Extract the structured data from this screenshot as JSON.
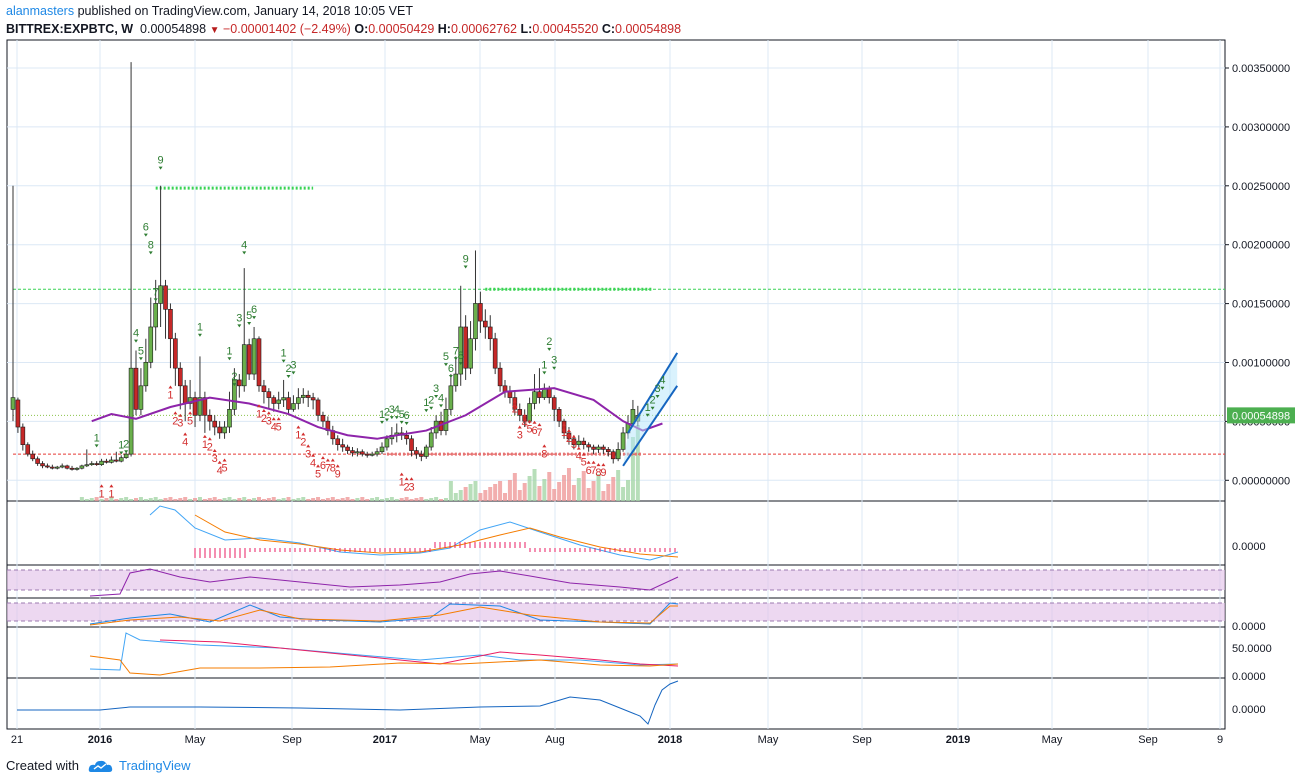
{
  "header": {
    "author": "alanmasters",
    "published_text": " published on TradingView.com, January 14, 2018 10:05 VET",
    "symbol": "BITTREX:EXPBTC, W",
    "last": "0.00054898",
    "change": "−0.00001402 (−2.49%)",
    "o_label": "O:",
    "o_value": "0.00050429",
    "h_label": "H:",
    "h_value": "0.00062762",
    "l_label": "L:",
    "l_value": "0.00045520",
    "c_label": "C:",
    "c_value": "0.00054898"
  },
  "footer": {
    "created_with": "Created with",
    "brand": "TradingView"
  },
  "colors": {
    "up": "#4caf50",
    "down": "#c62828",
    "ma": "#8e24aa",
    "channel": "#1565c0",
    "grid": "#dce8f5",
    "axis": "#131722",
    "td_up": "#2e7d32",
    "td_down": "#d32f2f",
    "price_tag": "#4caf50"
  },
  "chart_data": {
    "type": "candlestick",
    "price_axis": {
      "ticks": [
        "0.00350000",
        "0.00300000",
        "0.00250000",
        "0.00200000",
        "0.00150000",
        "0.00100000",
        "0.00050000",
        "0.00000000"
      ],
      "range": [
        0.0,
        0.0037
      ],
      "last_price_tag": "0.00054898"
    },
    "time_axis": {
      "labels": [
        "21",
        "2016",
        "May",
        "Sep",
        "2017",
        "May",
        "Aug",
        "2018",
        "May",
        "Sep",
        "2019",
        "May",
        "Sep",
        "9"
      ],
      "bold": [
        "2016",
        "2017",
        "2018",
        "2019"
      ]
    },
    "candles": [
      [
        0.0006,
        0.0007,
        0.0025,
        0.0005
      ],
      [
        0.00068,
        0.00045,
        0.0007,
        0.0004
      ],
      [
        0.00045,
        0.0003,
        0.00048,
        0.00025
      ],
      [
        0.0003,
        0.00022,
        0.00032,
        0.0002
      ],
      [
        0.00022,
        0.00018,
        0.00025,
        0.00016
      ],
      [
        0.00018,
        0.00014,
        0.0002,
        0.00012
      ],
      [
        0.00014,
        0.00012,
        0.00016,
        0.0001
      ],
      [
        0.00012,
        0.00011,
        0.00014,
        0.0001
      ],
      [
        0.00011,
        0.0001,
        0.00013,
        9e-05
      ],
      [
        0.0001,
        0.00011,
        0.00012,
        9e-05
      ],
      [
        0.00011,
        0.00012,
        0.00014,
        0.0001
      ],
      [
        0.00012,
        0.0001,
        0.00013,
        9e-05
      ],
      [
        0.0001,
        9e-05,
        0.00012,
        8e-05
      ],
      [
        9e-05,
        0.0001,
        0.00011,
        8e-05
      ],
      [
        0.0001,
        0.00012,
        0.00013,
        9e-05
      ],
      [
        0.00012,
        0.00013,
        0.00026,
        0.00011
      ],
      [
        0.00013,
        0.00014,
        0.00016,
        0.00012
      ],
      [
        0.00014,
        0.00013,
        0.00016,
        0.00012
      ],
      [
        0.00013,
        0.00016,
        0.00018,
        0.00012
      ],
      [
        0.00016,
        0.00015,
        0.00018,
        0.00014
      ],
      [
        0.00015,
        0.00017,
        0.0002,
        0.00014
      ],
      [
        0.00017,
        0.00016,
        0.00024,
        0.00015
      ],
      [
        0.00016,
        0.00019,
        0.00021,
        0.00015
      ],
      [
        0.00019,
        0.00022,
        0.00024,
        0.00018
      ],
      [
        0.00022,
        0.00095,
        0.00355,
        0.0002
      ],
      [
        0.00095,
        0.0006,
        0.0011,
        0.00055
      ],
      [
        0.0006,
        0.0008,
        0.00095,
        0.00055
      ],
      [
        0.0008,
        0.001,
        0.0012,
        0.00075
      ],
      [
        0.001,
        0.0013,
        0.00155,
        0.00095
      ],
      [
        0.0013,
        0.0015,
        0.0017,
        0.0011
      ],
      [
        0.0015,
        0.00165,
        0.0025,
        0.0013
      ],
      [
        0.00165,
        0.00145,
        0.0017,
        0.0012
      ],
      [
        0.00145,
        0.0012,
        0.0015,
        0.00095
      ],
      [
        0.0012,
        0.00095,
        0.00125,
        0.0008
      ],
      [
        0.00095,
        0.0008,
        0.001,
        0.0006
      ],
      [
        0.0008,
        0.00065,
        0.00085,
        0.0005
      ],
      [
        0.00065,
        0.0007,
        0.00085,
        0.0006
      ],
      [
        0.0007,
        0.00055,
        0.00075,
        0.00045
      ],
      [
        0.00055,
        0.0007,
        0.00105,
        0.0005
      ],
      [
        0.0007,
        0.00055,
        0.00075,
        0.0004
      ],
      [
        0.00055,
        0.0005,
        0.0006,
        0.00042
      ],
      [
        0.0005,
        0.00045,
        0.00055,
        0.00038
      ],
      [
        0.00045,
        0.0004,
        0.0005,
        0.00035
      ],
      [
        0.0004,
        0.00045,
        0.0005,
        0.00035
      ],
      [
        0.00045,
        0.0006,
        0.00075,
        0.0004
      ],
      [
        0.0006,
        0.00085,
        0.00095,
        0.00055
      ],
      [
        0.00085,
        0.0008,
        0.0009,
        0.0007
      ],
      [
        0.0008,
        0.00115,
        0.0018,
        0.00075
      ],
      [
        0.00115,
        0.0009,
        0.0012,
        0.00085
      ],
      [
        0.0009,
        0.0012,
        0.0013,
        0.00085
      ],
      [
        0.0012,
        0.0008,
        0.00122,
        0.00075
      ],
      [
        0.0008,
        0.00075,
        0.00085,
        0.00065
      ],
      [
        0.00075,
        0.0007,
        0.00078,
        0.0006
      ],
      [
        0.0007,
        0.00065,
        0.00072,
        0.00058
      ],
      [
        0.00065,
        0.00068,
        0.00075,
        0.0006
      ],
      [
        0.00068,
        0.0007,
        0.00085,
        0.00062
      ],
      [
        0.0007,
        0.0006,
        0.00075,
        0.00055
      ],
      [
        0.0006,
        0.00065,
        0.00072,
        0.00058
      ],
      [
        0.00065,
        0.0007,
        0.00078,
        0.0006
      ],
      [
        0.0007,
        0.00072,
        0.00078,
        0.00065
      ],
      [
        0.00072,
        0.0007,
        0.00076,
        0.00062
      ],
      [
        0.0007,
        0.00068,
        0.00074,
        0.0006
      ],
      [
        0.00068,
        0.00055,
        0.0007,
        0.0005
      ],
      [
        0.00055,
        0.0005,
        0.00058,
        0.00045
      ],
      [
        0.0005,
        0.00042,
        0.00054,
        0.00038
      ],
      [
        0.00042,
        0.00035,
        0.00046,
        0.0003
      ],
      [
        0.00035,
        0.0003,
        0.00038,
        0.00025
      ],
      [
        0.0003,
        0.00028,
        0.00035,
        0.00024
      ],
      [
        0.00028,
        0.00025,
        0.0003,
        0.00022
      ],
      [
        0.00025,
        0.00023,
        0.00028,
        0.0002
      ],
      [
        0.00023,
        0.00024,
        0.00027,
        0.0002
      ],
      [
        0.00024,
        0.00022,
        0.00026,
        0.0002
      ],
      [
        0.00022,
        0.00021,
        0.00024,
        0.00019
      ],
      [
        0.00021,
        0.00022,
        0.00024,
        0.0002
      ],
      [
        0.00022,
        0.00024,
        0.00027,
        0.0002
      ],
      [
        0.00024,
        0.00028,
        0.00032,
        0.00022
      ],
      [
        0.00028,
        0.00035,
        0.00038,
        0.00025
      ],
      [
        0.00035,
        0.00038,
        0.00045,
        0.0003
      ],
      [
        0.00038,
        0.0004,
        0.00048,
        0.00032
      ],
      [
        0.0004,
        0.00038,
        0.00045,
        0.00034
      ],
      [
        0.00038,
        0.00035,
        0.00042,
        0.0003
      ],
      [
        0.00035,
        0.00025,
        0.00038,
        0.0002
      ],
      [
        0.00025,
        0.00022,
        0.00028,
        0.00018
      ],
      [
        0.00022,
        0.0002,
        0.00025,
        0.00016
      ],
      [
        0.0002,
        0.00028,
        0.0003,
        0.00018
      ],
      [
        0.00028,
        0.0004,
        0.00045,
        0.00025
      ],
      [
        0.0004,
        0.0005,
        0.00055,
        0.00035
      ],
      [
        0.0005,
        0.00042,
        0.00058,
        0.00038
      ],
      [
        0.00042,
        0.0006,
        0.0007,
        0.00038
      ],
      [
        0.0006,
        0.0008,
        0.0009,
        0.00055
      ],
      [
        0.0008,
        0.0009,
        0.00105,
        0.00075
      ],
      [
        0.0009,
        0.0013,
        0.00165,
        0.0008
      ],
      [
        0.0013,
        0.00095,
        0.0014,
        0.00085
      ],
      [
        0.00095,
        0.0012,
        0.00135,
        0.0009
      ],
      [
        0.0012,
        0.0015,
        0.00195,
        0.0011
      ],
      [
        0.0015,
        0.00135,
        0.0016,
        0.00125
      ],
      [
        0.00135,
        0.0013,
        0.00145,
        0.0012
      ],
      [
        0.0013,
        0.0012,
        0.0014,
        0.0011
      ],
      [
        0.0012,
        0.00095,
        0.00125,
        0.0009
      ],
      [
        0.00095,
        0.0008,
        0.001,
        0.00075
      ],
      [
        0.0008,
        0.00075,
        0.00085,
        0.0007
      ],
      [
        0.00075,
        0.0007,
        0.0008,
        0.00065
      ],
      [
        0.0007,
        0.0006,
        0.00075,
        0.00055
      ],
      [
        0.0006,
        0.00055,
        0.00065,
        0.0005
      ],
      [
        0.00055,
        0.0005,
        0.0006,
        0.00045
      ],
      [
        0.0005,
        0.00065,
        0.0007,
        0.00048
      ],
      [
        0.00065,
        0.00075,
        0.0009,
        0.0006
      ],
      [
        0.00075,
        0.0007,
        0.00095,
        0.00065
      ],
      [
        0.0007,
        0.00078,
        0.00082,
        0.00068
      ],
      [
        0.00078,
        0.0007,
        0.0008,
        0.00065
      ],
      [
        0.0007,
        0.0006,
        0.00072,
        0.0005
      ],
      [
        0.0006,
        0.0005,
        0.00062,
        0.00045
      ],
      [
        0.0005,
        0.0004,
        0.00052,
        0.00035
      ],
      [
        0.0004,
        0.00035,
        0.00045,
        0.0003
      ],
      [
        0.00035,
        0.0003,
        0.00038,
        0.00026
      ],
      [
        0.0003,
        0.00033,
        0.00038,
        0.00028
      ],
      [
        0.00033,
        0.0003,
        0.00036,
        0.00026
      ],
      [
        0.0003,
        0.00028,
        0.00032,
        0.00024
      ],
      [
        0.00028,
        0.00026,
        0.0003,
        0.00022
      ],
      [
        0.00026,
        0.00028,
        0.0003,
        0.00023
      ],
      [
        0.00028,
        0.00026,
        0.0003,
        0.00022
      ],
      [
        0.00026,
        0.00024,
        0.00028,
        0.0002
      ],
      [
        0.00024,
        0.00018,
        0.00026,
        0.00014
      ],
      [
        0.00018,
        0.00026,
        0.00032,
        0.00016
      ],
      [
        0.00026,
        0.0004,
        0.00045,
        0.00024
      ],
      [
        0.0004,
        0.00048,
        0.00055,
        0.00035
      ],
      [
        0.00048,
        0.0006,
        0.00068,
        0.00045
      ],
      [
        0.0005,
        0.000549,
        0.00063,
        0.000455
      ]
    ],
    "moving_average": [
      [
        16,
        0.0005
      ],
      [
        20,
        0.00056
      ],
      [
        25,
        0.00052
      ],
      [
        32,
        0.00062
      ],
      [
        40,
        0.0007
      ],
      [
        48,
        0.00065
      ],
      [
        56,
        0.00056
      ],
      [
        62,
        0.00045
      ],
      [
        68,
        0.00038
      ],
      [
        74,
        0.00035
      ],
      [
        78,
        0.00038
      ],
      [
        84,
        0.00042
      ],
      [
        92,
        0.00055
      ],
      [
        100,
        0.00075
      ],
      [
        110,
        0.00078
      ],
      [
        118,
        0.00068
      ],
      [
        124,
        0.0005
      ],
      [
        128,
        0.00042
      ],
      [
        132,
        0.00048
      ]
    ],
    "horizontal_lines": [
      {
        "value": 0.00248,
        "from": 29,
        "to": 61,
        "style": "dotted-bold",
        "color": "#39d353"
      },
      {
        "value": 0.00162,
        "from": 0,
        "to": 220,
        "style": "dashed",
        "color": "#39d353"
      },
      {
        "value": 0.00162,
        "from": 96,
        "to": 130,
        "style": "dotted-bold",
        "color": "#39d353"
      },
      {
        "value": 0.000549,
        "from": 0,
        "to": 220,
        "style": "dotted",
        "color": "#8bc34a"
      },
      {
        "value": 0.00022,
        "from": 0,
        "to": 220,
        "style": "dashed",
        "color": "#e53935"
      },
      {
        "value": 0.00022,
        "from": 76,
        "to": 128,
        "style": "dotted-bold",
        "color": "#e57373"
      }
    ],
    "channel": {
      "lower": [
        [
          124,
          0.00012
        ],
        [
          135,
          0.0008
        ]
      ],
      "upper": [
        [
          125,
          0.0004
        ],
        [
          135,
          0.00108
        ]
      ]
    },
    "td_counts_up": [
      [
        17,
        "1",
        0.00026
      ],
      [
        22,
        "1",
        0.0002
      ],
      [
        23,
        "2",
        0.00021
      ],
      [
        25,
        "4",
        0.00115
      ],
      [
        26,
        "5",
        0.001
      ],
      [
        27,
        "6",
        0.00205
      ],
      [
        28,
        "8",
        0.0019
      ],
      [
        29,
        "7",
        0.0015
      ],
      [
        30,
        "9",
        0.00262
      ],
      [
        38,
        "1",
        0.0012
      ],
      [
        44,
        "1",
        0.001
      ],
      [
        45,
        "2",
        0.00078
      ],
      [
        46,
        "3",
        0.00128
      ],
      [
        47,
        "4",
        0.0019
      ],
      [
        48,
        "5",
        0.0013
      ],
      [
        49,
        "6",
        0.00135
      ],
      [
        55,
        "1",
        0.00098
      ],
      [
        56,
        "2",
        0.00085
      ],
      [
        57,
        "3",
        0.00088
      ],
      [
        75,
        "1",
        0.00046
      ],
      [
        76,
        "2",
        0.00048
      ],
      [
        77,
        "3",
        0.0005
      ],
      [
        78,
        "4",
        0.0005
      ],
      [
        79,
        "5",
        0.00046
      ],
      [
        80,
        "6",
        0.00045
      ],
      [
        84,
        "1",
        0.00056
      ],
      [
        85,
        "2",
        0.00058
      ],
      [
        86,
        "3",
        0.00068
      ],
      [
        87,
        "4",
        0.0006
      ],
      [
        88,
        "5",
        0.00095
      ],
      [
        89,
        "6",
        0.00085
      ],
      [
        90,
        "7",
        0.001
      ],
      [
        91,
        "8",
        0.00096
      ],
      [
        92,
        "9",
        0.00178
      ],
      [
        108,
        "1",
        0.00088
      ],
      [
        109,
        "2",
        0.00108
      ],
      [
        110,
        "3",
        0.00092
      ],
      [
        129,
        "1",
        0.00052
      ],
      [
        130,
        "2",
        0.00058
      ],
      [
        131,
        "3",
        0.00068
      ],
      [
        132,
        "4",
        0.00075
      ]
    ],
    "td_counts_down": [
      [
        18,
        "1",
        -2e-05
      ],
      [
        20,
        "1",
        -2e-05
      ],
      [
        32,
        "1",
        0.00082
      ],
      [
        33,
        "2",
        0.0006
      ],
      [
        34,
        "3",
        0.00058
      ],
      [
        35,
        "4",
        0.00042
      ],
      [
        36,
        "5",
        0.0006
      ],
      [
        39,
        "1",
        0.0004
      ],
      [
        40,
        "2",
        0.00038
      ],
      [
        41,
        "3",
        0.00028
      ],
      [
        42,
        "4",
        0.00018
      ],
      [
        43,
        "5",
        0.0002
      ],
      [
        50,
        "1",
        0.00066
      ],
      [
        51,
        "2",
        0.00062
      ],
      [
        52,
        "3",
        0.0006
      ],
      [
        53,
        "4",
        0.00055
      ],
      [
        54,
        "5",
        0.00055
      ],
      [
        58,
        "1",
        0.00048
      ],
      [
        59,
        "2",
        0.00042
      ],
      [
        60,
        "3",
        0.00032
      ],
      [
        61,
        "4",
        0.00024
      ],
      [
        62,
        "5",
        0.00015
      ],
      [
        63,
        "6",
        0.00022
      ],
      [
        64,
        "7",
        0.0002
      ],
      [
        65,
        "8",
        0.0002
      ],
      [
        66,
        "9",
        0.00015
      ],
      [
        79,
        "1",
        8e-05
      ],
      [
        80,
        "2",
        4e-05
      ],
      [
        81,
        "3",
        4e-05
      ],
      [
        102,
        "2",
        0.0007
      ],
      [
        103,
        "3",
        0.00048
      ],
      [
        104,
        "4",
        0.00058
      ],
      [
        105,
        "5",
        0.00053
      ],
      [
        106,
        "6",
        0.00052
      ],
      [
        107,
        "7",
        0.0005
      ],
      [
        108,
        "8",
        0.00032
      ],
      [
        112,
        "1",
        0.0005
      ],
      [
        113,
        "2",
        0.00045
      ],
      [
        114,
        "3",
        0.0004
      ],
      [
        115,
        "4",
        0.0003
      ],
      [
        116,
        "5",
        0.00025
      ],
      [
        117,
        "6",
        0.00018
      ],
      [
        118,
        "7",
        0.00018
      ],
      [
        119,
        "8",
        0.00016
      ],
      [
        120,
        "9",
        0.00016
      ]
    ],
    "volume": {
      "present": true
    },
    "subpanes": [
      {
        "name": "macd",
        "label": "0.0000"
      },
      {
        "name": "rsi",
        "label": ""
      },
      {
        "name": "stoch",
        "label": "0.0000"
      },
      {
        "name": "dmi",
        "label": "50.0000",
        "label2": "0.0000"
      },
      {
        "name": "momentum",
        "label": "0.0000"
      }
    ]
  }
}
